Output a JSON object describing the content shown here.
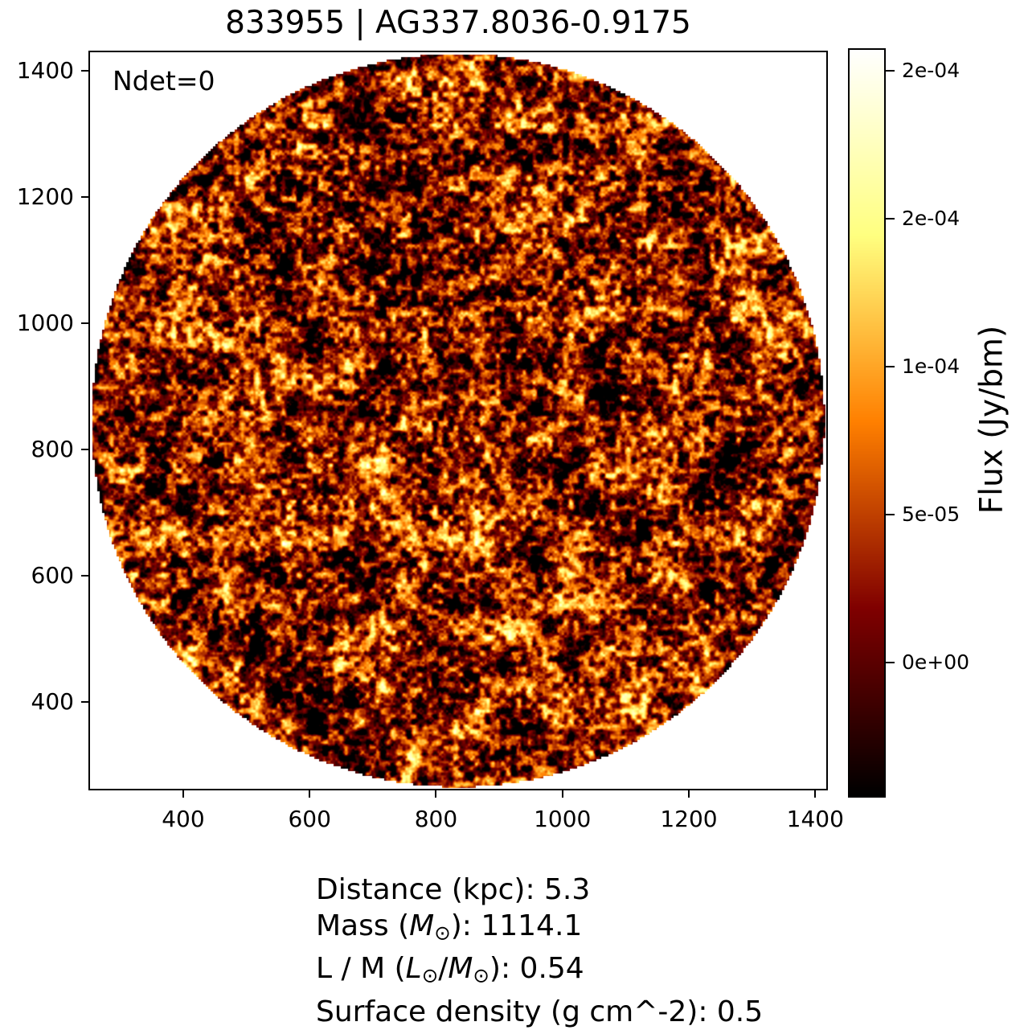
{
  "figure": {
    "title": "833955 | AG337.8036-0.9175",
    "annotation": "Ndet=0",
    "background_color": "#ffffff",
    "text_color": "#000000"
  },
  "chart_data": {
    "type": "heatmap",
    "title": "833955 | AG337.8036-0.9175",
    "annotation": "Ndet=0",
    "image_shape": "circle",
    "colormap": "afmhot",
    "grid": false,
    "x_ticks": [
      400,
      600,
      800,
      1000,
      1200,
      1400
    ],
    "y_ticks": [
      400,
      600,
      800,
      1000,
      1200,
      1400
    ],
    "x_range": [
      250,
      1420
    ],
    "y_range": [
      260,
      1432
    ],
    "colorbar": {
      "label": "Flux (Jy/bm)",
      "position": "right",
      "vmin": -4.5e-05,
      "vmax": 0.000207,
      "ticks": [
        {
          "value": 0.0002,
          "label": "2e-04"
        },
        {
          "value": 0.00015,
          "label": "2e-04"
        },
        {
          "value": 0.0001,
          "label": "1e-04"
        },
        {
          "value": 5e-05,
          "label": "5e-05"
        },
        {
          "value": 0.0,
          "label": "0e+00"
        }
      ]
    },
    "noise": {
      "seed": 833955,
      "base_t": 0.28,
      "amp_t": 0.36
    }
  },
  "info": {
    "lines": [
      {
        "segments": [
          {
            "t": "Distance (kpc): 5.3"
          }
        ]
      },
      {
        "segments": [
          {
            "t": "Mass ("
          },
          {
            "t": "M",
            "style": "italic"
          },
          {
            "t": "⊙",
            "style": "sub"
          },
          {
            "t": "): 1114.1"
          }
        ]
      },
      {
        "segments": [
          {
            "t": "L / M ("
          },
          {
            "t": "L",
            "style": "italic"
          },
          {
            "t": "⊙",
            "style": "sub"
          },
          {
            "t": "/"
          },
          {
            "t": "M",
            "style": "italic"
          },
          {
            "t": "⊙",
            "style": "sub"
          },
          {
            "t": "): 0.54"
          }
        ]
      },
      {
        "segments": [
          {
            "t": "Surface density (g cm^-2): 0.5"
          }
        ]
      }
    ]
  }
}
